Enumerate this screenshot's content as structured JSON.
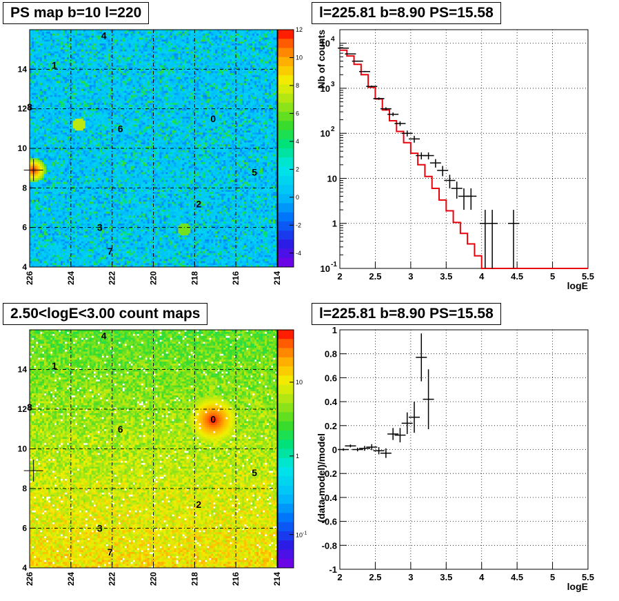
{
  "panels": {
    "tl_title": "PS map b=10 l=220",
    "tr_title": "l=225.81 b=8.90 PS=15.58",
    "bl_title": "2.50<logE<3.00 count maps",
    "br_title": "l=225.81 b=8.90 PS=15.58"
  },
  "chart_data": [
    {
      "id": "ps-map",
      "type": "heatmap",
      "title": "PS map b=10 l=220",
      "xlim": [
        226,
        214
      ],
      "ylim": [
        4,
        16
      ],
      "xticks": [
        "226",
        "224",
        "222",
        "220",
        "218",
        "216",
        "214"
      ],
      "yticks": [
        "4",
        "6",
        "8",
        "10",
        "12",
        "14"
      ],
      "colorbar": {
        "min": -5,
        "max": 12,
        "ticks": [
          "-4",
          "-2",
          "0",
          "2",
          "4",
          "6",
          "8",
          "10",
          "12"
        ]
      },
      "sources": [
        {
          "label": "0",
          "l": 217.1,
          "b": 11.5
        },
        {
          "label": "1",
          "l": 224.8,
          "b": 14.2
        },
        {
          "label": "2",
          "l": 217.8,
          "b": 7.2
        },
        {
          "label": "3",
          "l": 222.6,
          "b": 6.0
        },
        {
          "label": "4",
          "l": 222.4,
          "b": 15.7
        },
        {
          "label": "5",
          "l": 215.1,
          "b": 8.8
        },
        {
          "label": "6",
          "l": 221.6,
          "b": 11.0
        },
        {
          "label": "7",
          "l": 222.1,
          "b": 4.8
        },
        {
          "label": "8",
          "l": 226.0,
          "b": 12.1
        }
      ],
      "marker": {
        "l": 225.81,
        "b": 8.9
      }
    },
    {
      "id": "count-spectrum",
      "type": "line",
      "title": "l=225.81 b=8.90 PS=15.58",
      "xlabel": "logE",
      "ylabel": "Nb of counts",
      "xlim": [
        2,
        5.5
      ],
      "ylim": [
        0.1,
        20000
      ],
      "yscale": "log",
      "xticks": [
        "2",
        "2.5",
        "3",
        "3.5",
        "4",
        "4.5",
        "5",
        "5.5"
      ],
      "yticks": [
        {
          "v": 0.1,
          "base": "10",
          "exp": "-1"
        },
        {
          "v": 1,
          "base": "1"
        },
        {
          "v": 10,
          "base": "10"
        },
        {
          "v": 100,
          "base": "10",
          "exp": "2"
        },
        {
          "v": 1000,
          "base": "10",
          "exp": "3"
        },
        {
          "v": 10000,
          "base": "10",
          "exp": "4"
        }
      ],
      "bin_edges": [
        2.0,
        2.1,
        2.2,
        2.3,
        2.4,
        2.5,
        2.6,
        2.7,
        2.8,
        2.9,
        3.0,
        3.1,
        3.2,
        3.3,
        3.4,
        3.5,
        3.6,
        3.7,
        3.8,
        3.9,
        4.0,
        4.1,
        4.2,
        4.3,
        4.4,
        4.5,
        4.6,
        4.7,
        4.8,
        4.9,
        5.0,
        5.1,
        5.2,
        5.3,
        5.4,
        5.5
      ],
      "model": [
        7000,
        5200,
        3400,
        2000,
        1050,
        580,
        330,
        190,
        110,
        62,
        36,
        20,
        11,
        6.0,
        3.3,
        1.9,
        1.05,
        0.6,
        0.35,
        0.19,
        0.1,
        0.1,
        0.1,
        0.1,
        0.1,
        0.1,
        0.1,
        0.1,
        0.1,
        0.1,
        0.1,
        0.1,
        0.1,
        0.1,
        0.1
      ],
      "data": [
        {
          "x": 2.05,
          "y": 7800
        },
        {
          "x": 2.15,
          "y": 5800
        },
        {
          "x": 2.25,
          "y": 4000
        },
        {
          "x": 2.35,
          "y": 2350
        },
        {
          "x": 2.45,
          "y": 1100
        },
        {
          "x": 2.55,
          "y": 590
        },
        {
          "x": 2.65,
          "y": 350
        },
        {
          "x": 2.75,
          "y": 265
        },
        {
          "x": 2.85,
          "y": 165
        },
        {
          "x": 2.95,
          "y": 100
        },
        {
          "x": 3.05,
          "y": 75
        },
        {
          "x": 3.15,
          "y": 32
        },
        {
          "x": 3.25,
          "y": 32
        },
        {
          "x": 3.35,
          "y": 22
        },
        {
          "x": 3.45,
          "y": 15
        },
        {
          "x": 3.55,
          "y": 9
        },
        {
          "x": 3.65,
          "y": 6
        },
        {
          "x": 3.75,
          "y": 4
        },
        {
          "x": 3.85,
          "y": 4
        },
        {
          "x": 4.05,
          "y": 1
        },
        {
          "x": 4.15,
          "y": 1
        },
        {
          "x": 4.45,
          "y": 1
        }
      ]
    },
    {
      "id": "count-map",
      "type": "heatmap",
      "title": "2.50<logE<3.00 count maps",
      "xlim": [
        226,
        214
      ],
      "ylim": [
        4,
        16
      ],
      "xticks": [
        "226",
        "224",
        "222",
        "220",
        "218",
        "216",
        "214"
      ],
      "yticks": [
        "4",
        "6",
        "8",
        "10",
        "12",
        "14"
      ],
      "colorbar": {
        "scale": "log",
        "ticks": [
          "10",
          "1",
          "10-1"
        ]
      },
      "sources": [
        {
          "label": "0",
          "l": 217.1,
          "b": 11.5
        },
        {
          "label": "1",
          "l": 224.8,
          "b": 14.2
        },
        {
          "label": "2",
          "l": 217.8,
          "b": 7.2
        },
        {
          "label": "3",
          "l": 222.6,
          "b": 6.0
        },
        {
          "label": "4",
          "l": 222.4,
          "b": 15.7
        },
        {
          "label": "5",
          "l": 215.1,
          "b": 8.8
        },
        {
          "label": "6",
          "l": 221.6,
          "b": 11.0
        },
        {
          "label": "7",
          "l": 222.1,
          "b": 4.8
        },
        {
          "label": "8",
          "l": 226.0,
          "b": 12.1
        }
      ],
      "marker": {
        "l": 225.81,
        "b": 8.9
      }
    },
    {
      "id": "residuals",
      "type": "scatter",
      "title": "l=225.81 b=8.90 PS=15.58",
      "xlabel": "logE",
      "ylabel": "(data-model)/model",
      "xlim": [
        2,
        5.5
      ],
      "ylim": [
        -1,
        1
      ],
      "xticks": [
        "2",
        "2.5",
        "3",
        "3.5",
        "4",
        "4.5",
        "5",
        "5.5"
      ],
      "yticks": [
        "-1",
        "-0.8",
        "-0.6",
        "-0.4",
        "-0.2",
        "0",
        "0.2",
        "0.4",
        "0.6",
        "0.8",
        "1"
      ],
      "data": [
        {
          "x": 2.05,
          "y": 0.0,
          "err": 0.01
        },
        {
          "x": 2.15,
          "y": 0.03,
          "err": 0.012
        },
        {
          "x": 2.25,
          "y": 0.0,
          "err": 0.015
        },
        {
          "x": 2.35,
          "y": 0.01,
          "err": 0.02
        },
        {
          "x": 2.45,
          "y": 0.02,
          "err": 0.025
        },
        {
          "x": 2.55,
          "y": -0.01,
          "err": 0.03
        },
        {
          "x": 2.65,
          "y": -0.03,
          "err": 0.04
        },
        {
          "x": 2.75,
          "y": 0.13,
          "err": 0.05
        },
        {
          "x": 2.85,
          "y": 0.12,
          "err": 0.06
        },
        {
          "x": 2.95,
          "y": 0.22,
          "err": 0.09
        },
        {
          "x": 3.05,
          "y": 0.27,
          "err": 0.13
        },
        {
          "x": 3.15,
          "y": 0.77,
          "err": 0.2
        },
        {
          "x": 3.25,
          "y": 0.42,
          "err": 0.25
        }
      ]
    }
  ]
}
